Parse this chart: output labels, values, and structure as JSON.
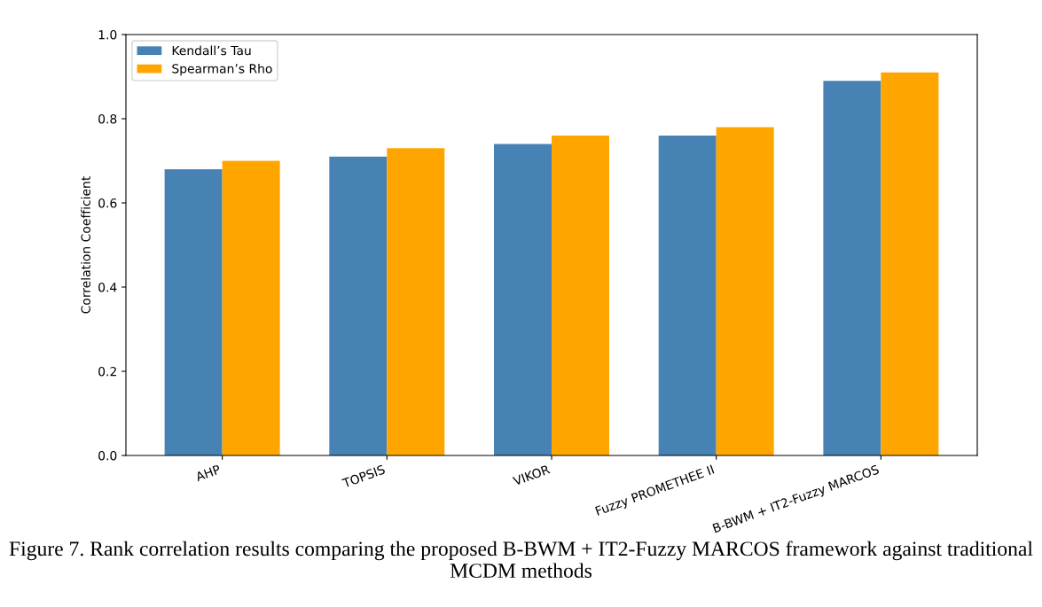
{
  "chart_data": {
    "type": "bar",
    "ylabel": "Correlation Coefficient",
    "categories": [
      "AHP",
      "TOPSIS",
      "VIKOR",
      "Fuzzy PROMETHEE II",
      "B-BWM + IT2-Fuzzy MARCOS"
    ],
    "series": [
      {
        "name": "Kendall’s Tau",
        "color": "#4682b4",
        "values": [
          0.68,
          0.71,
          0.74,
          0.76,
          0.89
        ]
      },
      {
        "name": "Spearman’s Rho",
        "color": "#ffa500",
        "values": [
          0.7,
          0.73,
          0.76,
          0.78,
          0.91
        ]
      }
    ],
    "ylim": [
      0,
      1.0
    ],
    "yticks": [
      {
        "value": 0,
        "label": "0.0"
      },
      0.2,
      0.4,
      0.6,
      0.8,
      {
        "value": 1,
        "label": "1.0"
      }
    ],
    "grid": false,
    "legend": "top left",
    "annotations": [
      "Figure 7. Rank correlation results comparing the proposed B-BWM + IT2-Fuzzy MARCOS framework against traditional MCDM methods"
    ]
  }
}
